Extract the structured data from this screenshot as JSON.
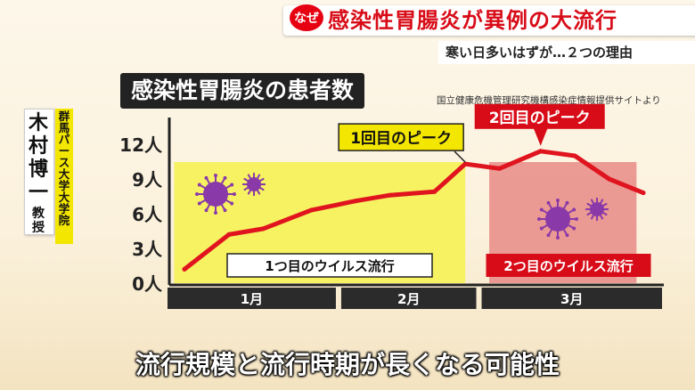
{
  "headline": {
    "badge": "なぜ",
    "text": "感染性胃腸炎が異例の大流行"
  },
  "subheadline": "寒い日多いはずが…２つの理由",
  "speaker": {
    "name": "木村博一",
    "role": "教授",
    "affiliation": "群馬パース大学大学院"
  },
  "caption": "流行規模と流行時期が長くなる可能性",
  "colors": {
    "line": "#e0141e",
    "wave1": "#f6f261",
    "wave2": "#e88a86",
    "virus": "#8a3aa8",
    "accent": "#d80c18"
  },
  "chart_data": {
    "type": "line",
    "title": "感染性胃腸炎の患者数",
    "source": "国立健康危機管理研究機構感染症情報提供サイトより",
    "ylim": [
      0,
      12
    ],
    "yticks": [
      "0人",
      "3人",
      "6人",
      "9人",
      "12人"
    ],
    "yticks_values": [
      0,
      3,
      6,
      9,
      12
    ],
    "months": [
      {
        "label": "1月",
        "start": 0,
        "end": 4.5
      },
      {
        "label": "2月",
        "start": 4.5,
        "end": 8.6
      },
      {
        "label": "3月",
        "start": 8.6,
        "end": 13
      }
    ],
    "series": [
      {
        "x": [
          0,
          1.3,
          2.3,
          3.7,
          5.0,
          6.0,
          7.3,
          8.2,
          9.2,
          10.4,
          11.4,
          12.4,
          13.4
        ],
        "values": [
          1.2,
          4.2,
          4.7,
          6.3,
          7.1,
          7.6,
          7.9,
          10.3,
          9.9,
          11.4,
          11.0,
          9.0,
          7.8
        ]
      }
    ],
    "regions": [
      {
        "label": "1つ目のウイルス流行",
        "x_start": -0.3,
        "x_end": 8.2,
        "color": "#f6f261",
        "text_color": "#111"
      },
      {
        "label": "2つ目のウイルス流行",
        "x_start": 8.9,
        "x_end": 13.2,
        "color": "#e88a86",
        "text_color": "#fff"
      }
    ],
    "annotations": [
      {
        "label": "1回目のピーク",
        "x": 8.2,
        "y": 10.3,
        "style": "yellow"
      },
      {
        "label": "2回目のピーク",
        "x": 10.4,
        "y": 11.4,
        "style": "red"
      }
    ]
  }
}
